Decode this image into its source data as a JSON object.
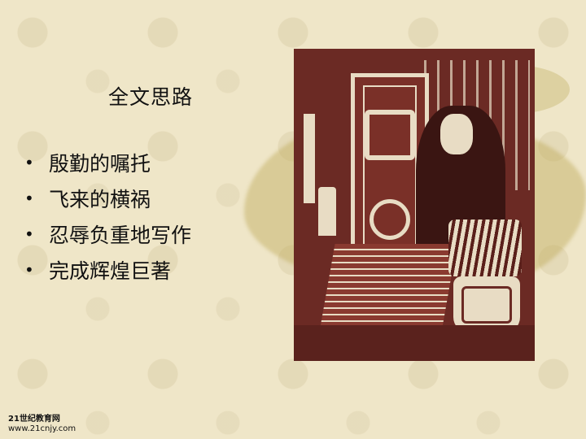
{
  "slide": {
    "title": "全文思路",
    "bullets": [
      "殷勤的嘱托",
      "飞来的横祸",
      "忍辱负重地写作",
      "完成辉煌巨著"
    ]
  },
  "watermark": {
    "line1": "21世纪教育网",
    "line2": "www.21cnjy.com"
  },
  "colors": {
    "background": "#efe6c8",
    "artwork_bg": "#6b2a24",
    "artwork_fg": "#e8dcc4"
  }
}
